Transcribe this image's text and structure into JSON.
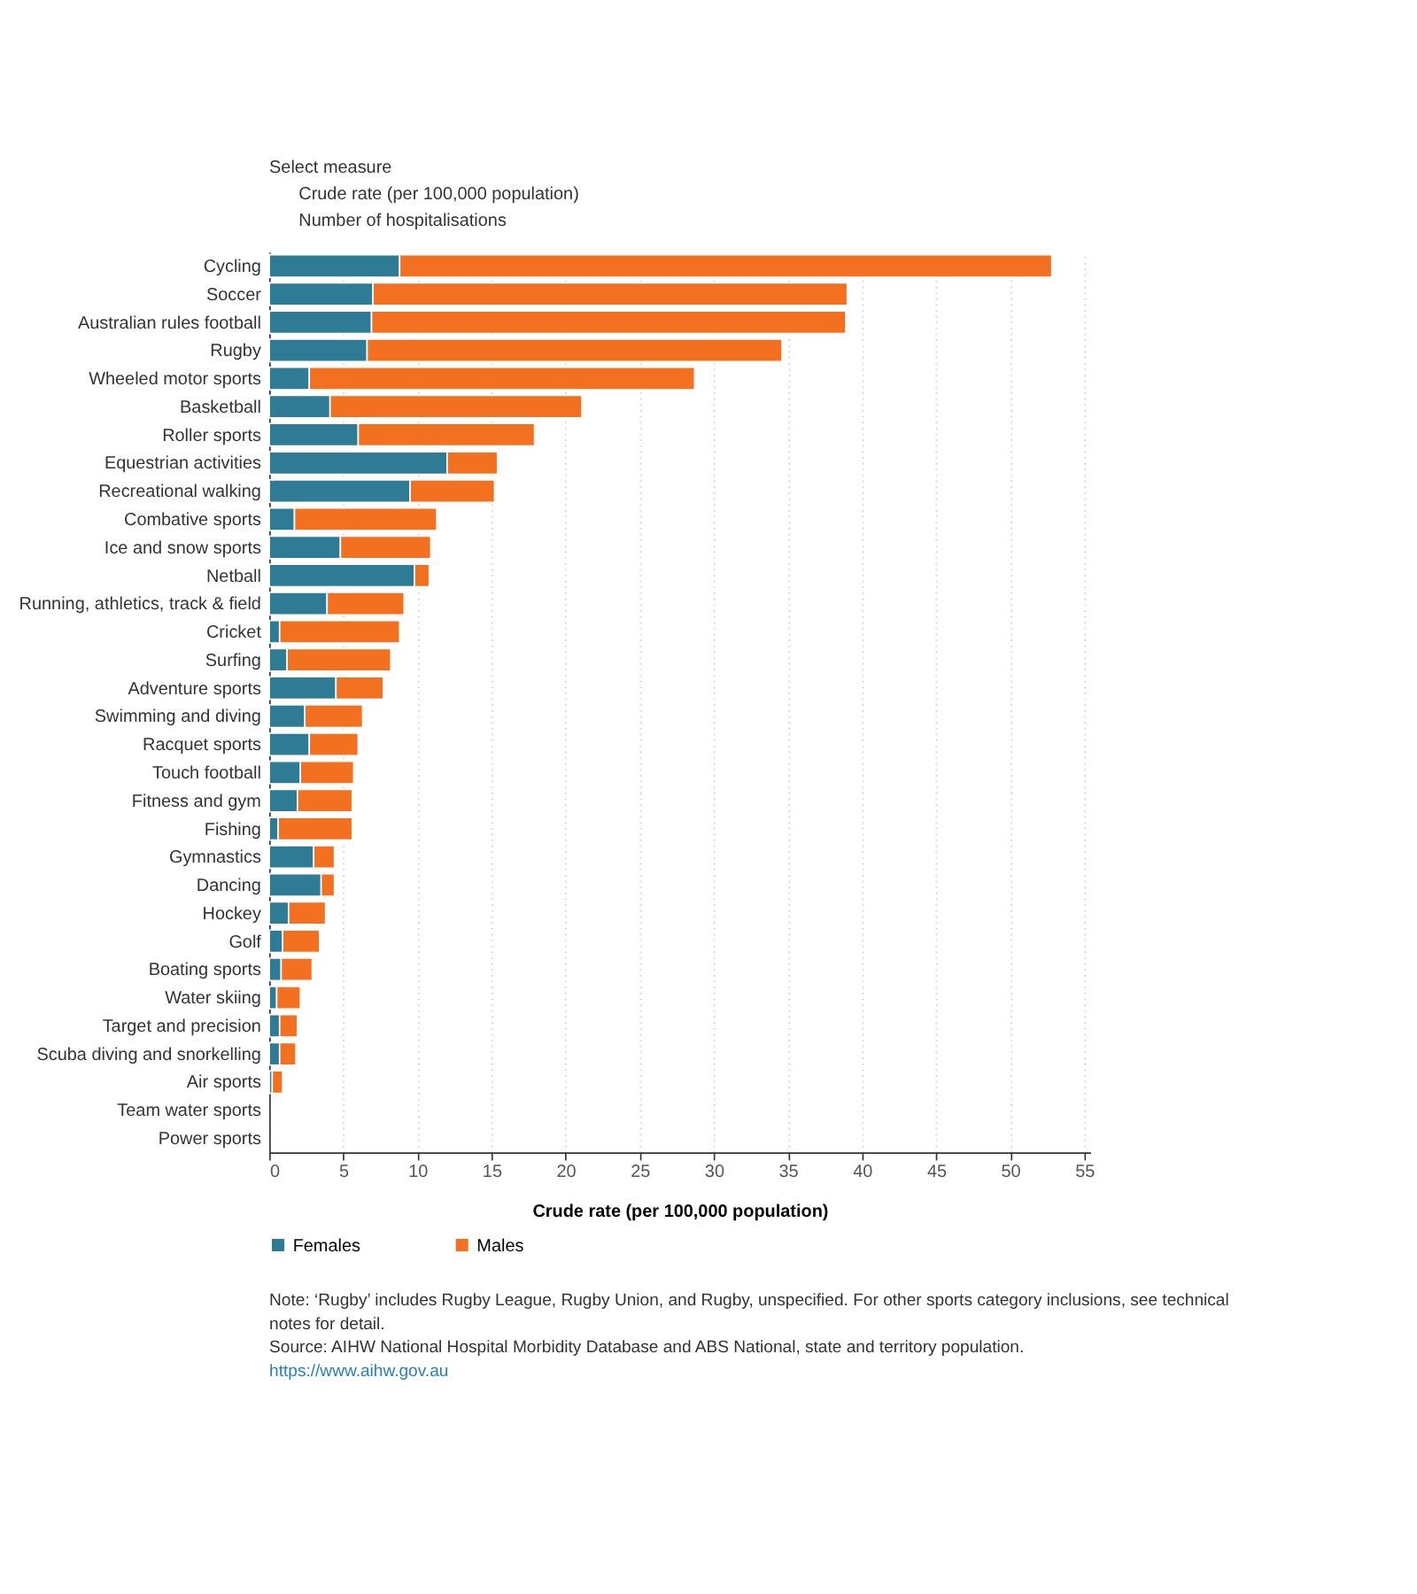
{
  "chart_data": {
    "type": "bar",
    "orientation": "horizontal",
    "stacked": true,
    "categories": [
      "Cycling",
      "Soccer",
      "Australian rules football",
      "Rugby",
      "Wheeled motor sports",
      "Basketball",
      "Roller sports",
      "Equestrian activities",
      "Recreational walking",
      "Combative sports",
      "Ice and snow sports",
      "Netball",
      "Running, athletics, track & field",
      "Cricket",
      "Surfing",
      "Adventure sports",
      "Swimming and diving",
      "Racquet sports",
      "Touch football",
      "Fitness and gym",
      "Fishing",
      "Gymnastics",
      "Dancing",
      "Hockey",
      "Golf",
      "Boating sports",
      "Water skiing",
      "Target and precision",
      "Scuba diving and snorkelling",
      "Air sports",
      "Team water sports",
      "Power sports"
    ],
    "series": [
      {
        "name": "Females",
        "color": "#2e7b96",
        "values": [
          8.8,
          7.0,
          6.9,
          6.6,
          2.7,
          4.1,
          6.0,
          12.0,
          9.5,
          1.7,
          4.8,
          9.8,
          3.9,
          0.7,
          1.2,
          4.5,
          2.4,
          2.7,
          2.1,
          1.9,
          0.6,
          3.0,
          3.5,
          1.3,
          0.9,
          0.8,
          0.5,
          0.7,
          0.7,
          0.2,
          null,
          null
        ]
      },
      {
        "name": "Males",
        "color": "#f37021",
        "values": [
          44.0,
          32.0,
          32.0,
          28.0,
          26.0,
          17.0,
          11.9,
          3.4,
          5.7,
          9.6,
          6.1,
          1.0,
          5.2,
          8.1,
          7.0,
          3.2,
          3.9,
          3.3,
          3.6,
          3.7,
          5.0,
          1.4,
          0.9,
          2.5,
          2.5,
          2.1,
          1.6,
          1.2,
          1.1,
          0.7,
          null,
          null
        ]
      }
    ],
    "xlabel": "Crude rate (per 100,000 population)",
    "xlim": [
      0,
      55.4
    ],
    "xticks": [
      0,
      5,
      10,
      15,
      20,
      25,
      30,
      35,
      40,
      45,
      50,
      55
    ],
    "grid": "x",
    "legend": "bottom",
    "annotations": [
      "Select measure",
      "Crude rate (per 100,000 population)",
      "Number of hospitalisations",
      "Note: ‘Rugby’ includes Rugby League, Rugby Union, and Rugby, unspecified. For other sports category inclusions, see technical notes for detail.",
      "Source: AIHW National Hospital Morbidity Database and ABS National, state and territory population.",
      "https://www.aihw.gov.au"
    ]
  }
}
